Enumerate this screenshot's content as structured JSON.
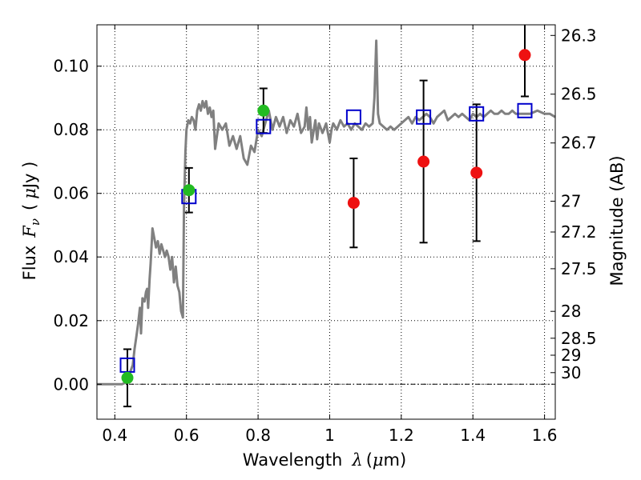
{
  "chart_data": {
    "type": "scatter",
    "xlabel": "Wavelength",
    "xlabel_symbol": "λ",
    "xlabel_unit": "(",
    "xlabel_unit_mu": "μ",
    "xlabel_unit_rest": "m)",
    "ylabel": "Flux",
    "ylabel_symbol": "F",
    "ylabel_sub": "ν",
    "ylabel_paren_open": "(",
    "ylabel_mu": "μ",
    "ylabel_unit_rest": "Jy )",
    "y2label": "Magnitude (AB)",
    "xlim": [
      0.35,
      1.63
    ],
    "ylim": [
      -0.011,
      0.113
    ],
    "grid": true,
    "x_ticks": [
      {
        "value": 0.4,
        "label": "0.4"
      },
      {
        "value": 0.6,
        "label": "0.6"
      },
      {
        "value": 0.8,
        "label": "0.8"
      },
      {
        "value": 1.0,
        "label": "1"
      },
      {
        "value": 1.2,
        "label": "1.2"
      },
      {
        "value": 1.4,
        "label": "1.4"
      },
      {
        "value": 1.6,
        "label": "1.6"
      }
    ],
    "y_ticks": [
      {
        "value": 0.0,
        "label": "0.00"
      },
      {
        "value": 0.02,
        "label": "0.02"
      },
      {
        "value": 0.04,
        "label": "0.04"
      },
      {
        "value": 0.06,
        "label": "0.06"
      },
      {
        "value": 0.08,
        "label": "0.08"
      },
      {
        "value": 0.1,
        "label": "0.10"
      }
    ],
    "y2_ticks": [
      {
        "mag": 26.3,
        "label": "26.3"
      },
      {
        "mag": 26.5,
        "label": "26.5"
      },
      {
        "mag": 26.7,
        "label": "26.7"
      },
      {
        "mag": 27.0,
        "label": "27"
      },
      {
        "mag": 27.2,
        "label": "27.2"
      },
      {
        "mag": 27.5,
        "label": "27.5"
      },
      {
        "mag": 28.0,
        "label": "28"
      },
      {
        "mag": 28.5,
        "label": "28.5"
      },
      {
        "mag": 29.0,
        "label": "29"
      },
      {
        "mag": 30.0,
        "label": "30"
      }
    ],
    "zero_line": 0.0,
    "spectrum": {
      "color": "#808080",
      "points": [
        [
          0.35,
          0.0
        ],
        [
          0.42,
          0.0
        ],
        [
          0.43,
          0.0005
        ],
        [
          0.44,
          0.003
        ],
        [
          0.45,
          0.006
        ],
        [
          0.455,
          0.011
        ],
        [
          0.46,
          0.015
        ],
        [
          0.465,
          0.019
        ],
        [
          0.47,
          0.024
        ],
        [
          0.473,
          0.016
        ],
        [
          0.477,
          0.027
        ],
        [
          0.483,
          0.026
        ],
        [
          0.487,
          0.029
        ],
        [
          0.49,
          0.03
        ],
        [
          0.493,
          0.024
        ],
        [
          0.497,
          0.033
        ],
        [
          0.5,
          0.038
        ],
        [
          0.505,
          0.049
        ],
        [
          0.51,
          0.046
        ],
        [
          0.515,
          0.043
        ],
        [
          0.52,
          0.045
        ],
        [
          0.525,
          0.041
        ],
        [
          0.53,
          0.044
        ],
        [
          0.535,
          0.042
        ],
        [
          0.54,
          0.04
        ],
        [
          0.545,
          0.042
        ],
        [
          0.55,
          0.04
        ],
        [
          0.555,
          0.036
        ],
        [
          0.56,
          0.04
        ],
        [
          0.565,
          0.032
        ],
        [
          0.57,
          0.037
        ],
        [
          0.575,
          0.031
        ],
        [
          0.58,
          0.029
        ],
        [
          0.585,
          0.023
        ],
        [
          0.59,
          0.021
        ],
        [
          0.593,
          0.055
        ],
        [
          0.597,
          0.073
        ],
        [
          0.6,
          0.08
        ],
        [
          0.605,
          0.083
        ],
        [
          0.61,
          0.082
        ],
        [
          0.615,
          0.084
        ],
        [
          0.62,
          0.083
        ],
        [
          0.625,
          0.08
        ],
        [
          0.63,
          0.086
        ],
        [
          0.635,
          0.088
        ],
        [
          0.64,
          0.086
        ],
        [
          0.645,
          0.089
        ],
        [
          0.65,
          0.087
        ],
        [
          0.655,
          0.089
        ],
        [
          0.66,
          0.085
        ],
        [
          0.665,
          0.087
        ],
        [
          0.67,
          0.084
        ],
        [
          0.675,
          0.086
        ],
        [
          0.68,
          0.074
        ],
        [
          0.69,
          0.082
        ],
        [
          0.7,
          0.08
        ],
        [
          0.71,
          0.082
        ],
        [
          0.72,
          0.075
        ],
        [
          0.73,
          0.078
        ],
        [
          0.74,
          0.074
        ],
        [
          0.75,
          0.078
        ],
        [
          0.76,
          0.071
        ],
        [
          0.77,
          0.069
        ],
        [
          0.78,
          0.075
        ],
        [
          0.79,
          0.073
        ],
        [
          0.8,
          0.08
        ],
        [
          0.81,
          0.078
        ],
        [
          0.82,
          0.082
        ],
        [
          0.83,
          0.086
        ],
        [
          0.84,
          0.08
        ],
        [
          0.85,
          0.084
        ],
        [
          0.86,
          0.081
        ],
        [
          0.87,
          0.084
        ],
        [
          0.88,
          0.079
        ],
        [
          0.89,
          0.083
        ],
        [
          0.9,
          0.081
        ],
        [
          0.91,
          0.085
        ],
        [
          0.92,
          0.079
        ],
        [
          0.93,
          0.081
        ],
        [
          0.935,
          0.087
        ],
        [
          0.94,
          0.08
        ],
        [
          0.945,
          0.084
        ],
        [
          0.95,
          0.076
        ],
        [
          0.96,
          0.083
        ],
        [
          0.965,
          0.077
        ],
        [
          0.97,
          0.082
        ],
        [
          0.98,
          0.079
        ],
        [
          0.99,
          0.082
        ],
        [
          1.0,
          0.076
        ],
        [
          1.005,
          0.08
        ],
        [
          1.01,
          0.082
        ],
        [
          1.02,
          0.08
        ],
        [
          1.03,
          0.083
        ],
        [
          1.04,
          0.081
        ],
        [
          1.05,
          0.082
        ],
        [
          1.06,
          0.08
        ],
        [
          1.07,
          0.082
        ],
        [
          1.08,
          0.081
        ],
        [
          1.09,
          0.08
        ],
        [
          1.1,
          0.082
        ],
        [
          1.11,
          0.081
        ],
        [
          1.12,
          0.082
        ],
        [
          1.125,
          0.09
        ],
        [
          1.13,
          0.108
        ],
        [
          1.135,
          0.085
        ],
        [
          1.14,
          0.082
        ],
        [
          1.15,
          0.081
        ],
        [
          1.16,
          0.08
        ],
        [
          1.17,
          0.081
        ],
        [
          1.18,
          0.08
        ],
        [
          1.19,
          0.081
        ],
        [
          1.2,
          0.082
        ],
        [
          1.21,
          0.083
        ],
        [
          1.22,
          0.084
        ],
        [
          1.23,
          0.082
        ],
        [
          1.24,
          0.084
        ],
        [
          1.25,
          0.083
        ],
        [
          1.26,
          0.084
        ],
        [
          1.27,
          0.085
        ],
        [
          1.28,
          0.084
        ],
        [
          1.29,
          0.082
        ],
        [
          1.3,
          0.084
        ],
        [
          1.31,
          0.085
        ],
        [
          1.32,
          0.086
        ],
        [
          1.33,
          0.083
        ],
        [
          1.34,
          0.084
        ],
        [
          1.35,
          0.085
        ],
        [
          1.36,
          0.084
        ],
        [
          1.37,
          0.085
        ],
        [
          1.38,
          0.084
        ],
        [
          1.39,
          0.083
        ],
        [
          1.4,
          0.085
        ],
        [
          1.41,
          0.084
        ],
        [
          1.42,
          0.085
        ],
        [
          1.43,
          0.084
        ],
        [
          1.44,
          0.085
        ],
        [
          1.45,
          0.086
        ],
        [
          1.46,
          0.085
        ],
        [
          1.47,
          0.085
        ],
        [
          1.48,
          0.086
        ],
        [
          1.49,
          0.085
        ],
        [
          1.5,
          0.085
        ],
        [
          1.51,
          0.086
        ],
        [
          1.52,
          0.085
        ],
        [
          1.54,
          0.085
        ],
        [
          1.56,
          0.085
        ],
        [
          1.58,
          0.086
        ],
        [
          1.6,
          0.085
        ],
        [
          1.615,
          0.085
        ],
        [
          1.63,
          0.084
        ]
      ]
    },
    "model_points": {
      "marker": "open-square",
      "color": "#0000cc",
      "points": [
        {
          "x": 0.435,
          "y": 0.006
        },
        {
          "x": 0.607,
          "y": 0.059
        },
        {
          "x": 0.815,
          "y": 0.081
        },
        {
          "x": 1.067,
          "y": 0.084
        },
        {
          "x": 1.262,
          "y": 0.084
        },
        {
          "x": 1.41,
          "y": 0.085
        },
        {
          "x": 1.545,
          "y": 0.086
        }
      ]
    },
    "green_points": {
      "marker": "filled-circle",
      "color": "#22bb22",
      "points": [
        {
          "x": 0.435,
          "y": 0.002,
          "yerr": 0.009
        },
        {
          "x": 0.607,
          "y": 0.061,
          "yerr": 0.007
        },
        {
          "x": 0.815,
          "y": 0.086,
          "yerr": 0.007
        }
      ]
    },
    "red_points": {
      "marker": "filled-circle",
      "color": "#ee1111",
      "points": [
        {
          "x": 1.067,
          "y": 0.057,
          "yerr": 0.014
        },
        {
          "x": 1.262,
          "y": 0.07,
          "yerr": 0.0255
        },
        {
          "x": 1.41,
          "y": 0.0665,
          "yerr": 0.0215
        },
        {
          "x": 1.545,
          "y": 0.1035,
          "yerr": 0.013
        }
      ]
    }
  }
}
